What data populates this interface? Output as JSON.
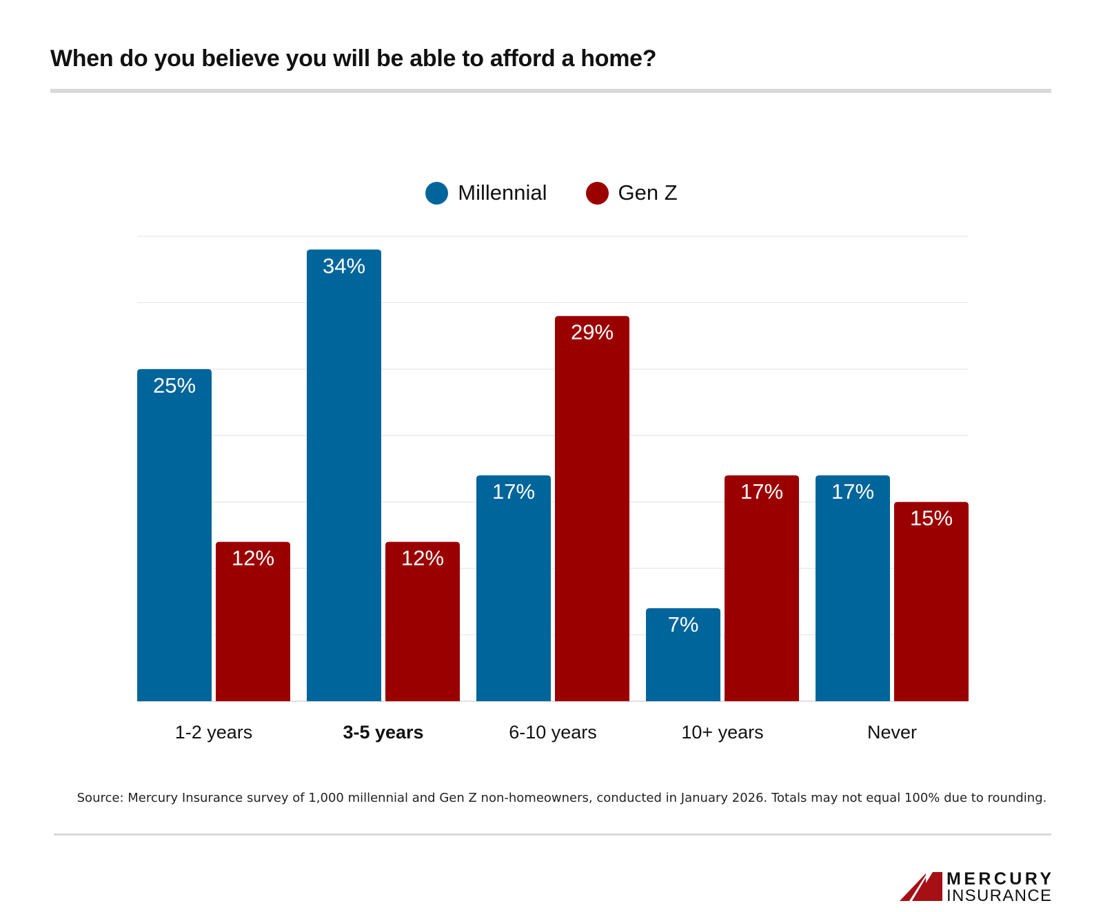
{
  "title": "When do you believe you will be able to afford a home?",
  "source": "Source: Mercury Insurance survey of 1,000 millennial and Gen Z non-homeowners, conducted in January 2026. Totals may not equal 100% due to rounding.",
  "logo": {
    "line1": "MERCURY",
    "line2": "INSURANCE",
    "color": "#a50f15"
  },
  "chart_data": {
    "type": "bar",
    "title": "When do you believe you will be able to afford a home?",
    "categories": [
      "1-2 years",
      "3-5 years",
      "6-10 years",
      "10+ years",
      "Never"
    ],
    "highlighted_category": "3-5 years",
    "series": [
      {
        "name": "Millennial",
        "color": "#00659a",
        "values": [
          25,
          34,
          17,
          7,
          17
        ],
        "labels": [
          "25%",
          "34%",
          "17%",
          "7%",
          "17%"
        ]
      },
      {
        "name": "Gen Z",
        "color": "#9b0000",
        "values": [
          12,
          12,
          29,
          17,
          15
        ],
        "labels": [
          "12%",
          "12%",
          "29%",
          "17%",
          "15%"
        ]
      }
    ],
    "ylim": [
      0,
      35
    ],
    "grid": true,
    "grid_step": 5,
    "legend": "top-center",
    "y_axis_labels": false
  }
}
